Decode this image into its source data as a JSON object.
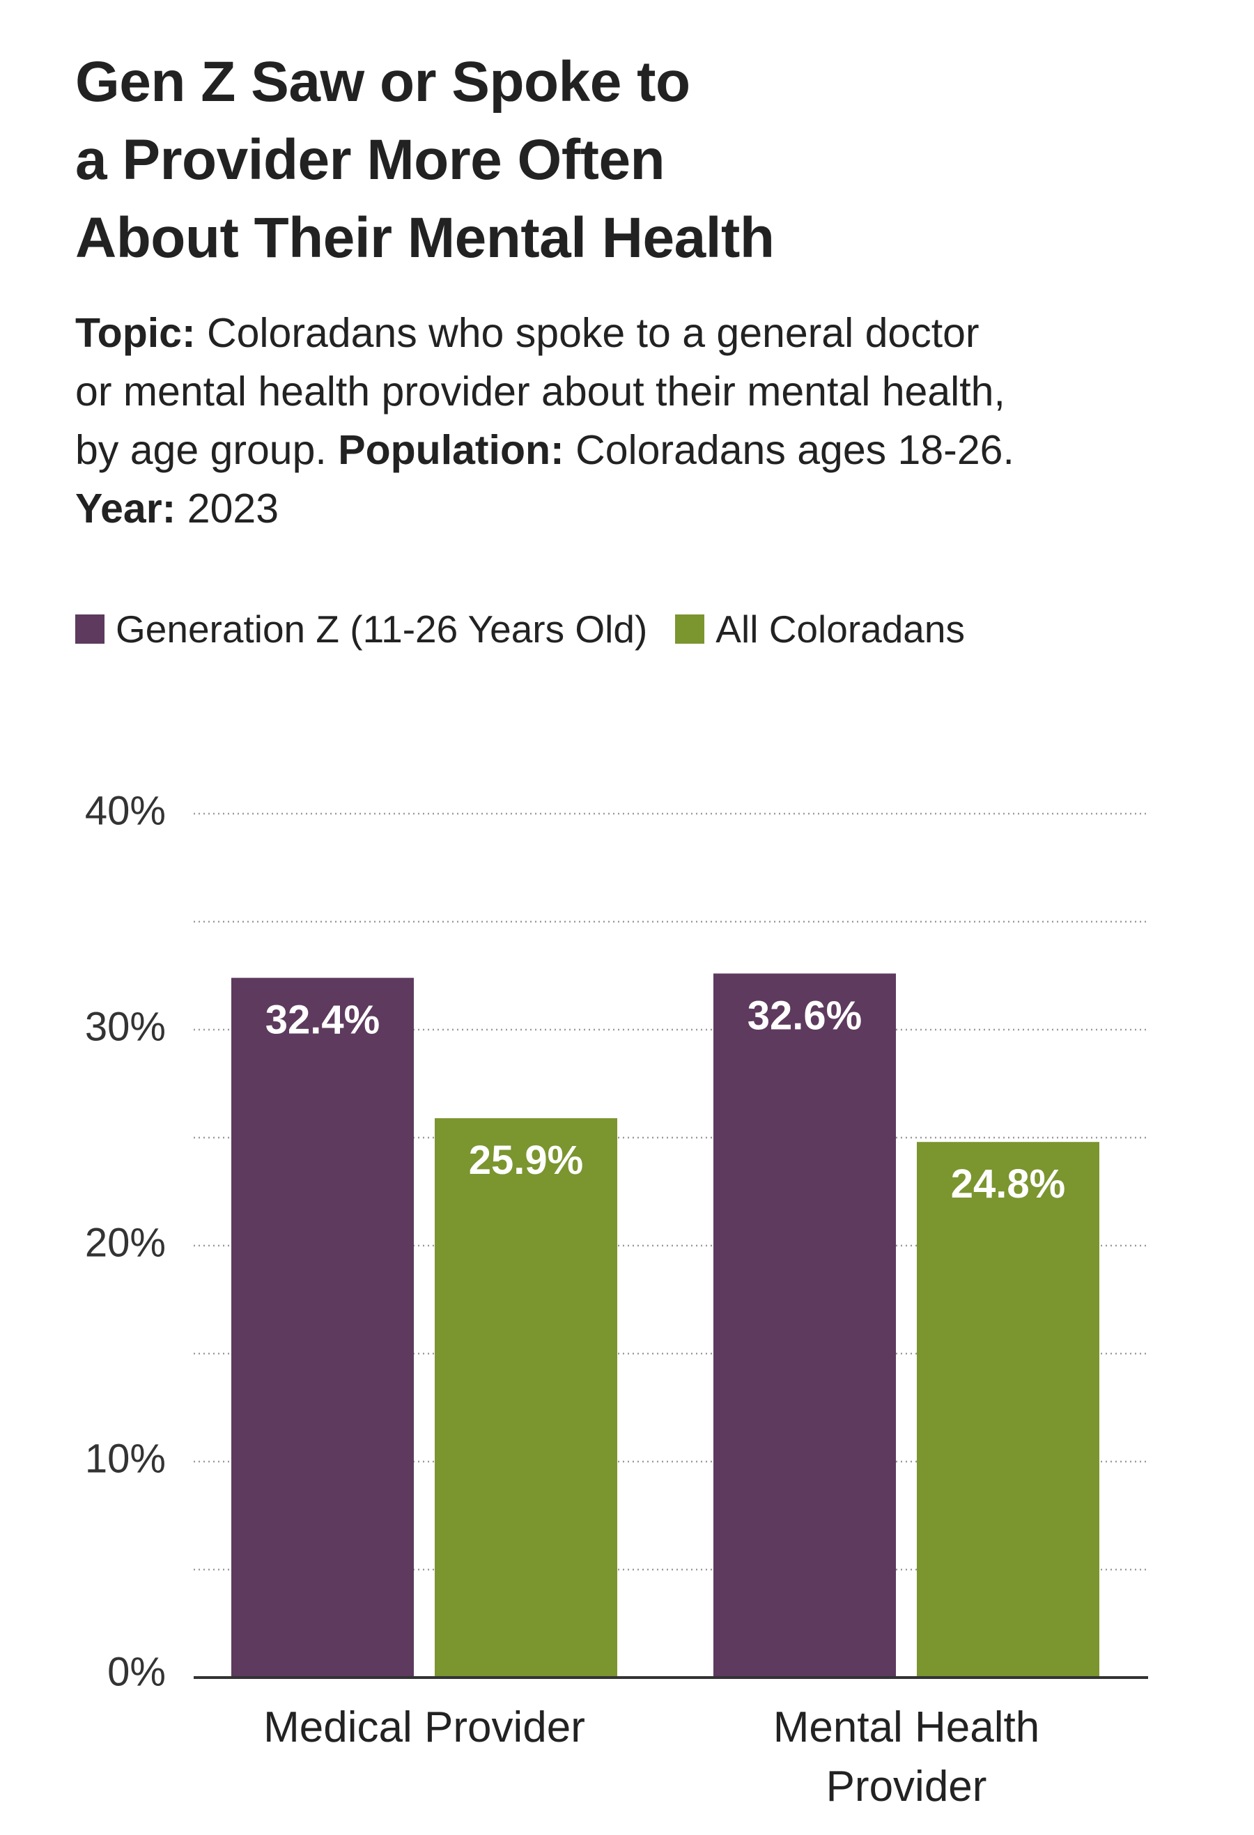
{
  "title_lines": [
    "Gen Z Saw or Spoke to",
    "a Provider More Often",
    "About Their Mental Health"
  ],
  "description": {
    "topic_label": "Topic:",
    "topic_text_line1": "Coloradans who spoke to a general doctor",
    "topic_text_line2": "or mental health provider about their mental health,",
    "topic_text_line3": "by age group.",
    "population_label": "Population:",
    "population_text": "Coloradans ages 18-26.",
    "year_label": "Year:",
    "year_text": "2023"
  },
  "legend": {
    "series_0": "Generation Z (11-26 Years Old)",
    "series_1": "All Coloradans"
  },
  "colors": {
    "gen_z": "#5d3a5e",
    "all_coloradans": "#7b952f",
    "grid": "#9a9a9a",
    "axis": "#333333",
    "label_on_bar": "#ffffff",
    "tick_text": "#333333"
  },
  "chart_data": {
    "type": "bar",
    "title": "Gen Z Saw or Spoke to a Provider More Often About Their Mental Health",
    "categories": [
      [
        "Medical Provider"
      ],
      [
        "Mental Health",
        "Provider"
      ]
    ],
    "series": [
      {
        "name": "Generation Z (11-26 Years Old)",
        "values": [
          32.4,
          32.6
        ],
        "labels": [
          "32.4%",
          "32.6%"
        ]
      },
      {
        "name": "All Coloradans",
        "values": [
          25.9,
          24.8
        ],
        "labels": [
          "25.9%",
          "24.8%"
        ]
      }
    ],
    "ylim": [
      0,
      40
    ],
    "y_ticks": [
      {
        "value": 0,
        "label": "0%"
      },
      {
        "value": 10,
        "label": "10%"
      },
      {
        "value": 20,
        "label": "20%"
      },
      {
        "value": 30,
        "label": "30%"
      },
      {
        "value": 40,
        "label": "40%"
      }
    ],
    "minor_gridlines": [
      5,
      15,
      25,
      35
    ],
    "grid": "dotted",
    "xlabel": "",
    "ylabel": ""
  }
}
